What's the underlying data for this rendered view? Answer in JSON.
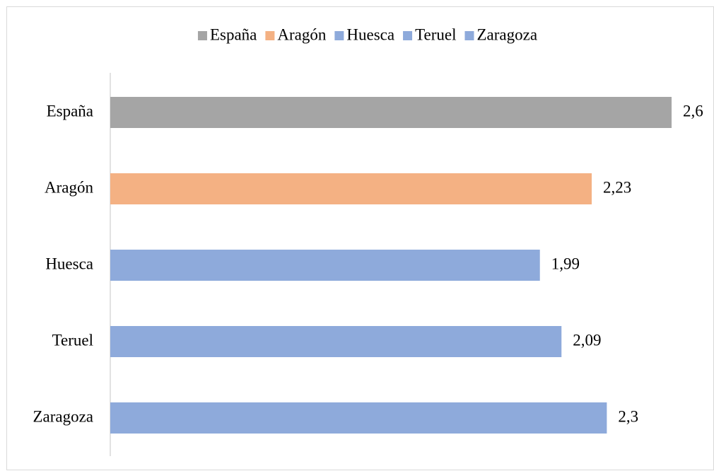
{
  "chart_data": {
    "type": "bar",
    "orientation": "horizontal",
    "categories": [
      "España",
      "Aragón",
      "Huesca",
      "Teruel",
      "Zaragoza"
    ],
    "values": [
      2.6,
      2.23,
      1.99,
      2.09,
      2.3
    ],
    "value_labels": [
      "2,6",
      "2,23",
      "1,99",
      "2,09",
      "2,3"
    ],
    "colors": [
      "#a5a5a5",
      "#f4b183",
      "#8eaadb",
      "#8eaadb",
      "#8eaadb"
    ],
    "xlim": [
      0,
      2.6
    ],
    "legend": "top"
  }
}
